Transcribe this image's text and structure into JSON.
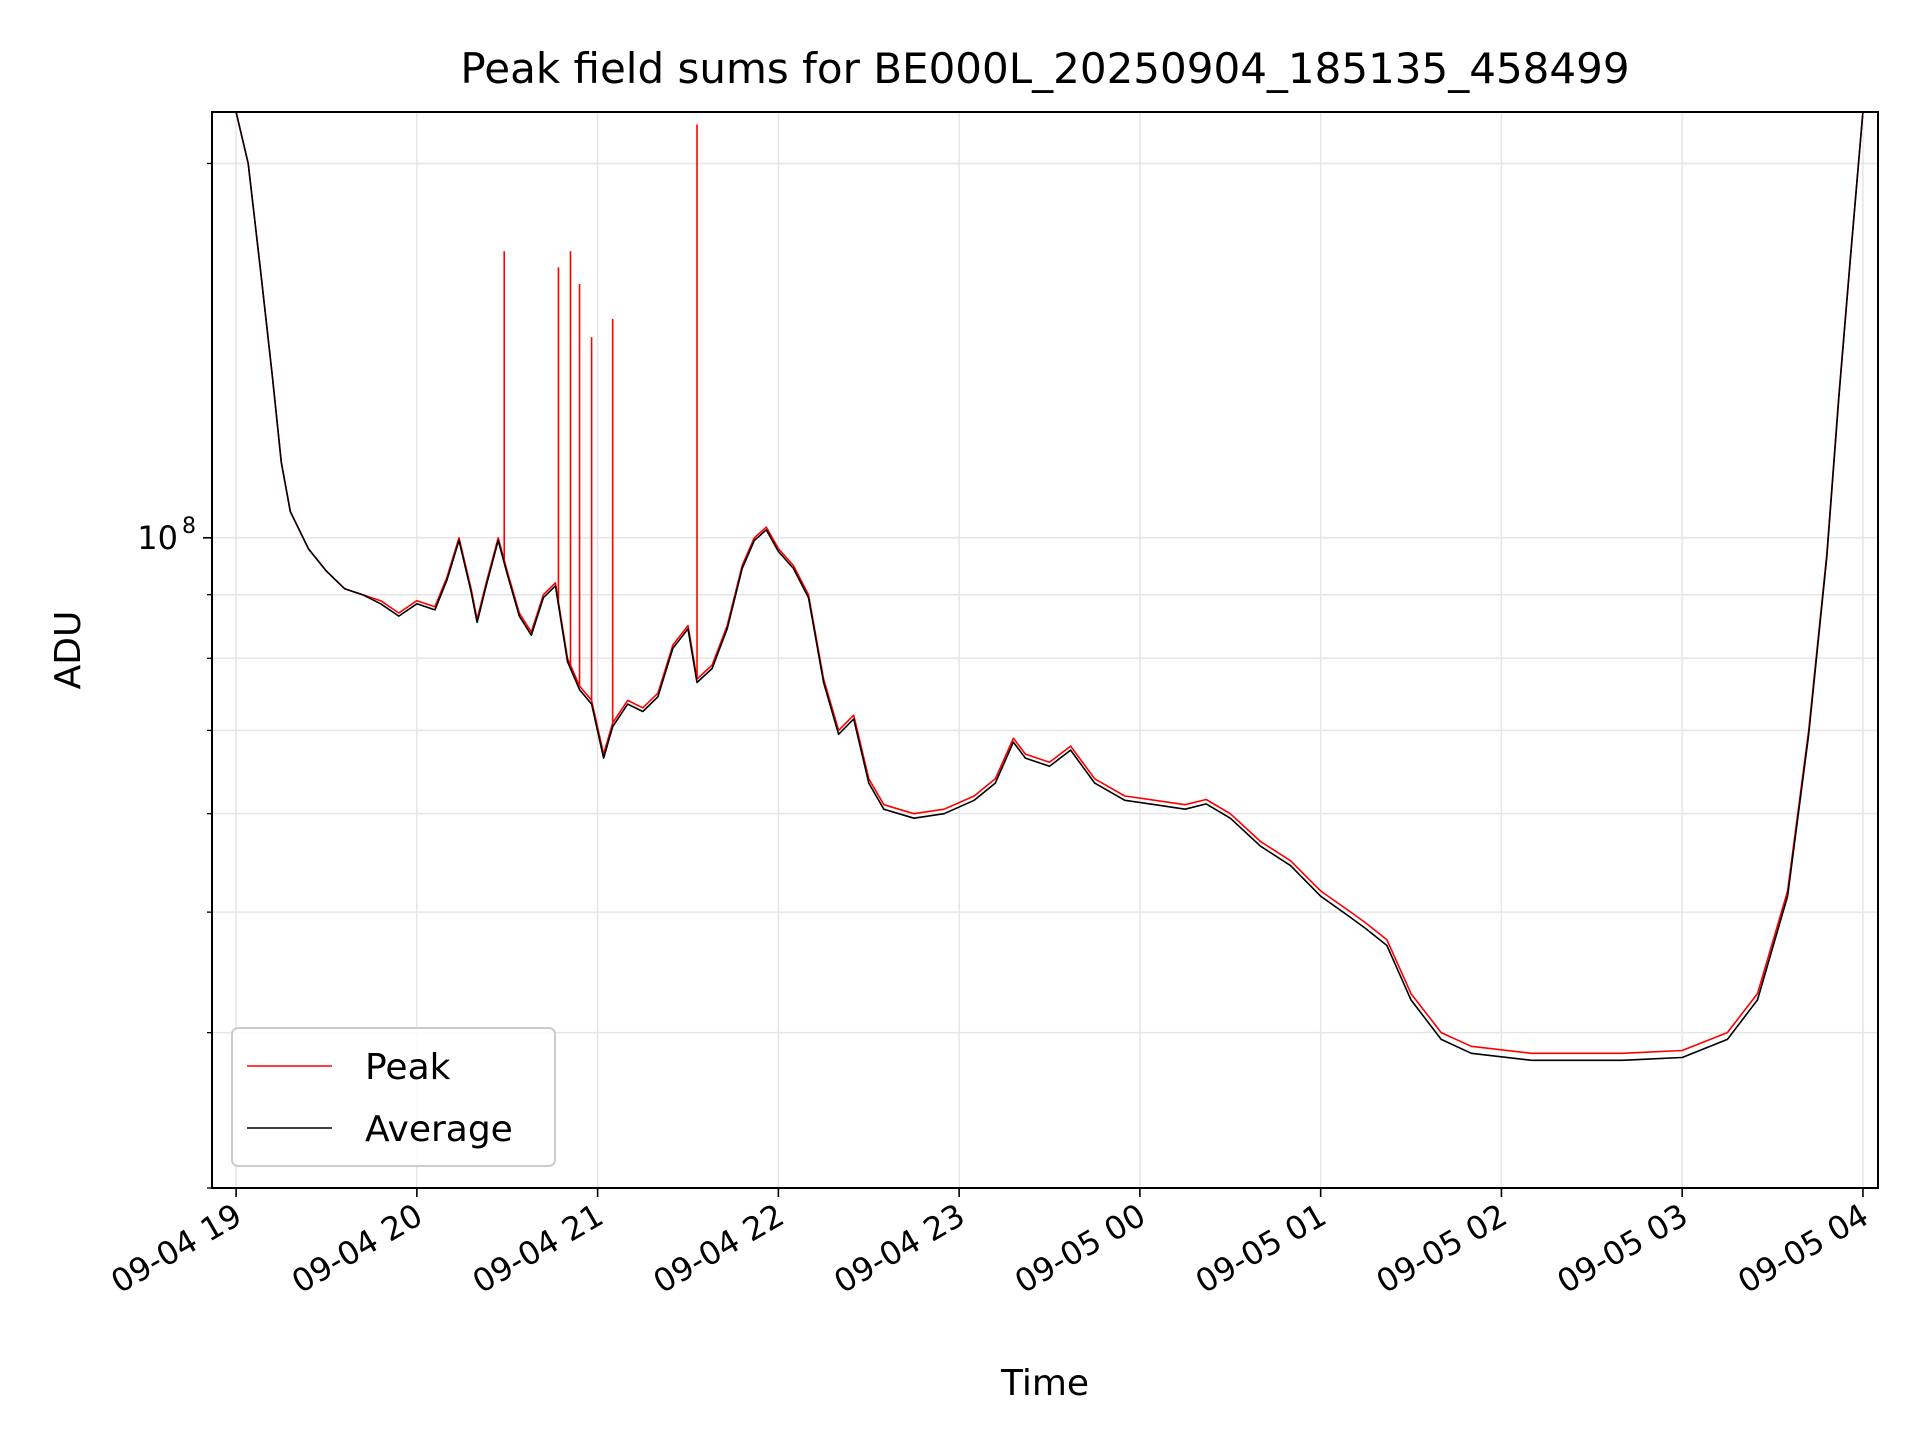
{
  "chart_data": {
    "type": "line",
    "title": "Peak field sums for BE000L_20250904_185135_458499",
    "xlabel": "Time",
    "ylabel": "ADU",
    "yscale": "log",
    "ylim": [
      30000000,
      220000000
    ],
    "xlim": [
      "2025-09-04 18:52",
      "2025-09-05 04:05"
    ],
    "grid": true,
    "legend_position": "lower-left",
    "x_tick_labels": [
      "09-04 19",
      "09-04 20",
      "09-04 21",
      "09-04 22",
      "09-04 23",
      "09-05 00",
      "09-05 01",
      "09-05 02",
      "09-05 03",
      "09-05 04"
    ],
    "y_tick_labels": [
      {
        "base": "10",
        "exp": "8",
        "value": 100000000
      }
    ],
    "series": [
      {
        "name": "Peak",
        "color": "#ff0000",
        "points": [
          [
            "2025-09-04 19:00",
            230000000
          ],
          [
            "2025-09-04 19:04",
            200000000
          ],
          [
            "2025-09-04 19:08",
            165000000
          ],
          [
            "2025-09-04 19:12",
            135000000
          ],
          [
            "2025-09-04 19:15",
            115000000
          ],
          [
            "2025-09-04 19:18",
            105000000
          ],
          [
            "2025-09-04 19:24",
            98000000
          ],
          [
            "2025-09-04 19:30",
            94000000
          ],
          [
            "2025-09-04 19:36",
            91000000
          ],
          [
            "2025-09-04 19:42",
            90000000
          ],
          [
            "2025-09-04 19:48",
            89000000
          ],
          [
            "2025-09-04 19:54",
            87000000
          ],
          [
            "2025-09-04 20:00",
            89000000
          ],
          [
            "2025-09-04 20:06",
            88000000
          ],
          [
            "2025-09-04 20:10",
            93000000
          ],
          [
            "2025-09-04 20:14",
            100000000
          ],
          [
            "2025-09-04 20:18",
            91000000
          ],
          [
            "2025-09-04 20:20",
            86000000
          ],
          [
            "2025-09-04 20:23",
            92000000
          ],
          [
            "2025-09-04 20:27",
            100000000
          ],
          [
            "2025-09-04 20:30",
            94000000
          ],
          [
            "2025-09-04 20:34",
            87000000
          ],
          [
            "2025-09-04 20:38",
            84000000
          ],
          [
            "2025-09-04 20:42",
            90000000
          ],
          [
            "2025-09-04 20:46",
            92000000
          ],
          [
            "2025-09-04 20:50",
            80000000
          ],
          [
            "2025-09-04 20:54",
            76000000
          ],
          [
            "2025-09-04 20:58",
            74000000
          ],
          [
            "2025-09-04 21:02",
            67000000
          ],
          [
            "2025-09-04 21:05",
            71000000
          ],
          [
            "2025-09-04 21:10",
            74000000
          ],
          [
            "2025-09-04 21:15",
            73000000
          ],
          [
            "2025-09-04 21:20",
            75000000
          ],
          [
            "2025-09-04 21:25",
            82000000
          ],
          [
            "2025-09-04 21:30",
            85000000
          ],
          [
            "2025-09-04 21:33",
            77000000
          ],
          [
            "2025-09-04 21:38",
            79000000
          ],
          [
            "2025-09-04 21:43",
            85000000
          ],
          [
            "2025-09-04 21:48",
            95000000
          ],
          [
            "2025-09-04 21:52",
            100000000
          ],
          [
            "2025-09-04 21:56",
            102000000
          ],
          [
            "2025-09-04 22:00",
            98000000
          ],
          [
            "2025-09-04 22:05",
            95000000
          ],
          [
            "2025-09-04 22:10",
            90000000
          ],
          [
            "2025-09-04 22:15",
            77000000
          ],
          [
            "2025-09-04 22:20",
            70000000
          ],
          [
            "2025-09-04 22:25",
            72000000
          ],
          [
            "2025-09-04 22:30",
            64000000
          ],
          [
            "2025-09-04 22:35",
            61000000
          ],
          [
            "2025-09-04 22:45",
            60000000
          ],
          [
            "2025-09-04 22:55",
            60500000
          ],
          [
            "2025-09-04 23:05",
            62000000
          ],
          [
            "2025-09-04 23:12",
            64000000
          ],
          [
            "2025-09-04 23:18",
            69000000
          ],
          [
            "2025-09-04 23:22",
            67000000
          ],
          [
            "2025-09-04 23:30",
            66000000
          ],
          [
            "2025-09-04 23:37",
            68000000
          ],
          [
            "2025-09-04 23:45",
            64000000
          ],
          [
            "2025-09-04 23:55",
            62000000
          ],
          [
            "2025-09-05 00:05",
            61500000
          ],
          [
            "2025-09-05 00:15",
            61000000
          ],
          [
            "2025-09-05 00:22",
            61600000
          ],
          [
            "2025-09-05 00:30",
            60000000
          ],
          [
            "2025-09-05 00:40",
            57000000
          ],
          [
            "2025-09-05 00:50",
            55000000
          ],
          [
            "2025-09-05 01:00",
            52000000
          ],
          [
            "2025-09-05 01:10",
            50000000
          ],
          [
            "2025-09-05 01:15",
            49000000
          ],
          [
            "2025-09-05 01:22",
            47500000
          ],
          [
            "2025-09-05 01:30",
            43000000
          ],
          [
            "2025-09-05 01:40",
            40000000
          ],
          [
            "2025-09-05 01:50",
            39000000
          ],
          [
            "2025-09-05 02:10",
            38500000
          ],
          [
            "2025-09-05 02:40",
            38500000
          ],
          [
            "2025-09-05 03:00",
            38700000
          ],
          [
            "2025-09-05 03:15",
            40000000
          ],
          [
            "2025-09-05 03:25",
            43000000
          ],
          [
            "2025-09-05 03:35",
            52000000
          ],
          [
            "2025-09-05 03:42",
            70000000
          ],
          [
            "2025-09-05 03:48",
            97000000
          ],
          [
            "2025-09-05 03:52",
            130000000
          ],
          [
            "2025-09-05 03:56",
            170000000
          ],
          [
            "2025-09-05 04:00",
            230000000
          ]
        ]
      },
      {
        "name": "Average",
        "color": "#000000",
        "points": [
          [
            "2025-09-04 19:00",
            230000000
          ],
          [
            "2025-09-04 19:04",
            200000000
          ],
          [
            "2025-09-04 19:08",
            165000000
          ],
          [
            "2025-09-04 19:12",
            135000000
          ],
          [
            "2025-09-04 19:15",
            115000000
          ],
          [
            "2025-09-04 19:18",
            105000000
          ],
          [
            "2025-09-04 19:24",
            98000000
          ],
          [
            "2025-09-04 19:30",
            94000000
          ],
          [
            "2025-09-04 19:36",
            91000000
          ],
          [
            "2025-09-04 19:42",
            90000000
          ],
          [
            "2025-09-04 19:48",
            88500000
          ],
          [
            "2025-09-04 19:54",
            86500000
          ],
          [
            "2025-09-04 20:00",
            88500000
          ],
          [
            "2025-09-04 20:06",
            87500000
          ],
          [
            "2025-09-04 20:10",
            92500000
          ],
          [
            "2025-09-04 20:14",
            99500000
          ],
          [
            "2025-09-04 20:18",
            90500000
          ],
          [
            "2025-09-04 20:20",
            85500000
          ],
          [
            "2025-09-04 20:23",
            91500000
          ],
          [
            "2025-09-04 20:27",
            99500000
          ],
          [
            "2025-09-04 20:30",
            93500000
          ],
          [
            "2025-09-04 20:34",
            86500000
          ],
          [
            "2025-09-04 20:38",
            83500000
          ],
          [
            "2025-09-04 20:42",
            89500000
          ],
          [
            "2025-09-04 20:46",
            91500000
          ],
          [
            "2025-09-04 20:50",
            79500000
          ],
          [
            "2025-09-04 20:54",
            75500000
          ],
          [
            "2025-09-04 20:58",
            73500000
          ],
          [
            "2025-09-04 21:02",
            66500000
          ],
          [
            "2025-09-04 21:05",
            70500000
          ],
          [
            "2025-09-04 21:10",
            73500000
          ],
          [
            "2025-09-04 21:15",
            72500000
          ],
          [
            "2025-09-04 21:20",
            74500000
          ],
          [
            "2025-09-04 21:25",
            81500000
          ],
          [
            "2025-09-04 21:30",
            84500000
          ],
          [
            "2025-09-04 21:33",
            76500000
          ],
          [
            "2025-09-04 21:38",
            78500000
          ],
          [
            "2025-09-04 21:43",
            84500000
          ],
          [
            "2025-09-04 21:48",
            94500000
          ],
          [
            "2025-09-04 21:52",
            99500000
          ],
          [
            "2025-09-04 21:56",
            101500000
          ],
          [
            "2025-09-04 22:00",
            97500000
          ],
          [
            "2025-09-04 22:05",
            94500000
          ],
          [
            "2025-09-04 22:10",
            89500000
          ],
          [
            "2025-09-04 22:15",
            76500000
          ],
          [
            "2025-09-04 22:20",
            69500000
          ],
          [
            "2025-09-04 22:25",
            71500000
          ],
          [
            "2025-09-04 22:30",
            63500000
          ],
          [
            "2025-09-04 22:35",
            60500000
          ],
          [
            "2025-09-04 22:45",
            59500000
          ],
          [
            "2025-09-04 22:55",
            60000000
          ],
          [
            "2025-09-04 23:05",
            61500000
          ],
          [
            "2025-09-04 23:12",
            63500000
          ],
          [
            "2025-09-04 23:18",
            68500000
          ],
          [
            "2025-09-04 23:22",
            66500000
          ],
          [
            "2025-09-04 23:30",
            65500000
          ],
          [
            "2025-09-04 23:37",
            67500000
          ],
          [
            "2025-09-04 23:45",
            63500000
          ],
          [
            "2025-09-04 23:55",
            61500000
          ],
          [
            "2025-09-05 00:05",
            61000000
          ],
          [
            "2025-09-05 00:15",
            60500000
          ],
          [
            "2025-09-05 00:22",
            61100000
          ],
          [
            "2025-09-05 00:30",
            59500000
          ],
          [
            "2025-09-05 00:40",
            56500000
          ],
          [
            "2025-09-05 00:50",
            54500000
          ],
          [
            "2025-09-05 01:00",
            51500000
          ],
          [
            "2025-09-05 01:10",
            49500000
          ],
          [
            "2025-09-05 01:15",
            48500000
          ],
          [
            "2025-09-05 01:22",
            47000000
          ],
          [
            "2025-09-05 01:30",
            42500000
          ],
          [
            "2025-09-05 01:40",
            39500000
          ],
          [
            "2025-09-05 01:50",
            38500000
          ],
          [
            "2025-09-05 02:10",
            38000000
          ],
          [
            "2025-09-05 02:40",
            38000000
          ],
          [
            "2025-09-05 03:00",
            38200000
          ],
          [
            "2025-09-05 03:15",
            39500000
          ],
          [
            "2025-09-05 03:25",
            42500000
          ],
          [
            "2025-09-05 03:35",
            51500000
          ],
          [
            "2025-09-05 03:42",
            69500000
          ],
          [
            "2025-09-05 03:48",
            96500000
          ],
          [
            "2025-09-05 03:52",
            129500000
          ],
          [
            "2025-09-05 03:56",
            169500000
          ],
          [
            "2025-09-05 04:00",
            230000000
          ]
        ]
      }
    ],
    "peak_spikes": [
      [
        "2025-09-04 20:29",
        170000000
      ],
      [
        "2025-09-04 20:47",
        165000000
      ],
      [
        "2025-09-04 20:51",
        170000000
      ],
      [
        "2025-09-04 20:54",
        160000000
      ],
      [
        "2025-09-04 20:58",
        145000000
      ],
      [
        "2025-09-04 21:05",
        150000000
      ],
      [
        "2025-09-04 21:33",
        215000000
      ]
    ]
  }
}
